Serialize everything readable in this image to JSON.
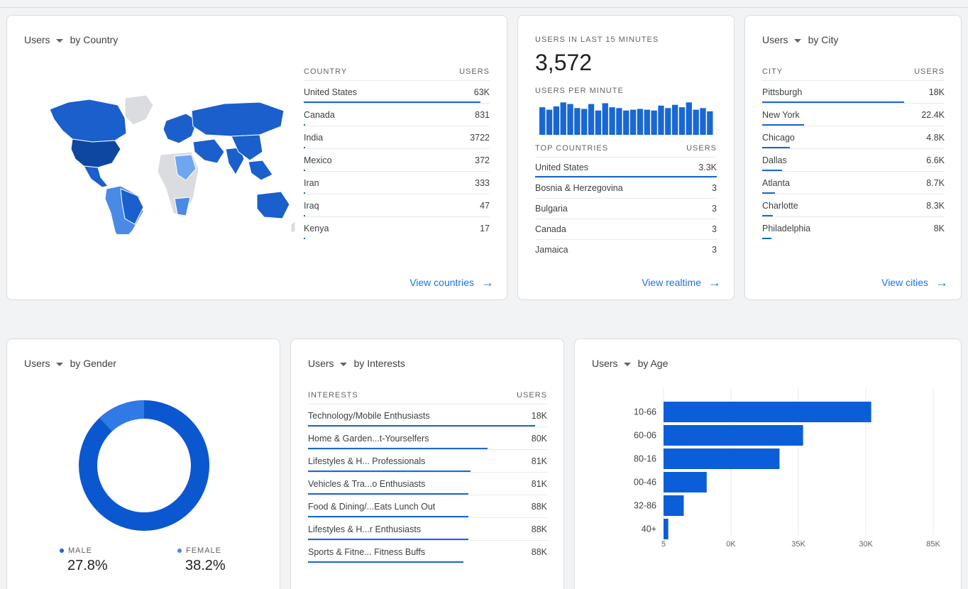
{
  "country_card": {
    "metric": "Users",
    "dimension": "by Country",
    "col1": "COUNTRY",
    "col2": "USERS",
    "rows": [
      {
        "label": "United States",
        "value": "63K",
        "bar": 0.95
      },
      {
        "label": "Canada",
        "value": "831",
        "bar": 0.01
      },
      {
        "label": "India",
        "value": "3722",
        "bar": 0.01
      },
      {
        "label": "Mexico",
        "value": "372",
        "bar": 0.01
      },
      {
        "label": "Iran",
        "value": "333",
        "bar": 0.01
      },
      {
        "label": "Iraq",
        "value": "47",
        "bar": 0.01
      },
      {
        "label": "Kenya",
        "value": "17",
        "bar": 0.01
      }
    ],
    "link": "View countries"
  },
  "realtime_card": {
    "title": "USERS IN LAST 15 MINUTES",
    "total": "3,572",
    "per_minute_label": "USERS PER MINUTE",
    "per_minute_values": [
      34,
      31,
      35,
      40,
      38,
      33,
      32,
      38,
      30,
      39,
      34,
      33,
      30,
      31,
      32,
      31,
      30,
      36,
      33,
      37,
      34,
      40,
      31,
      33,
      29
    ],
    "col1": "TOP COUNTRIES",
    "col2": "USERS",
    "rows": [
      {
        "label": "United States",
        "value": "3.3K",
        "bar": 1.0
      },
      {
        "label": "Bosnia & Herzegovina",
        "value": "3",
        "bar": 0.0
      },
      {
        "label": "Bulgaria",
        "value": "3",
        "bar": 0.0
      },
      {
        "label": "Canada",
        "value": "3",
        "bar": 0.0
      },
      {
        "label": "Jamaica",
        "value": "3",
        "bar": 0.0
      }
    ],
    "link": "View realtime"
  },
  "city_card": {
    "metric": "Users",
    "dimension": "by City",
    "col1": "CITY",
    "col2": "USERS",
    "rows": [
      {
        "label": "Pittsburgh",
        "value": "18K",
        "bar": 0.78
      },
      {
        "label": "New York",
        "value": "22.4K",
        "bar": 0.23
      },
      {
        "label": "Chicago",
        "value": "4.8K",
        "bar": 0.15
      },
      {
        "label": "Dallas",
        "value": "6.6K",
        "bar": 0.11
      },
      {
        "label": "Atlanta",
        "value": "8.7K",
        "bar": 0.07
      },
      {
        "label": "Charlotte",
        "value": "8.3K",
        "bar": 0.06
      },
      {
        "label": "Philadelphia",
        "value": "8K",
        "bar": 0.05
      }
    ],
    "link": "View cities"
  },
  "gender_card": {
    "metric": "Users",
    "dimension": "by Gender",
    "legend": [
      {
        "label": "MALE",
        "value": "27.8%",
        "color": "#1967d2"
      },
      {
        "label": "FEMALE",
        "value": "38.2%",
        "color": "#4285f4"
      }
    ],
    "donut": {
      "primary_color": "#0b57d0",
      "secondary_color": "#2f7ae5",
      "secondary_fraction": 0.12
    }
  },
  "interests_card": {
    "metric": "Users",
    "dimension": "by Interests",
    "col1": "INTERESTS",
    "col2": "USERS",
    "rows": [
      {
        "label": "Technology/Mobile Enthusiasts",
        "value": "18K",
        "bar": 0.95
      },
      {
        "label": "Home & Garden...t-Yourselfers",
        "value": "80K",
        "bar": 0.75
      },
      {
        "label": "Lifestyles & H... Professionals",
        "value": "81K",
        "bar": 0.68
      },
      {
        "label": "Vehicles & Tra...o Enthusiasts",
        "value": "81K",
        "bar": 0.67
      },
      {
        "label": "Food & Dining/...Eats Lunch Out",
        "value": "88K",
        "bar": 0.67
      },
      {
        "label": "Lifestyles & H...r Enthusiasts",
        "value": "88K",
        "bar": 0.67
      },
      {
        "label": "Sports & Fitne... Fitness Buffs",
        "value": "88K",
        "bar": 0.65
      }
    ]
  },
  "age_card": {
    "metric": "Users",
    "dimension": "by Age"
  },
  "chart_data": {
    "type": "bar",
    "orientation": "horizontal",
    "categories": [
      "10-66",
      "60-06",
      "80-16",
      "00-46",
      "32-86",
      "40+"
    ],
    "values": [
      30800,
      20700,
      17200,
      6400,
      3000,
      700
    ],
    "x_tick_labels": [
      "5",
      "0K",
      "35K",
      "30K",
      "85K"
    ],
    "xlim": [
      0,
      40000
    ],
    "grid": true,
    "color": "#0b5ed7"
  }
}
